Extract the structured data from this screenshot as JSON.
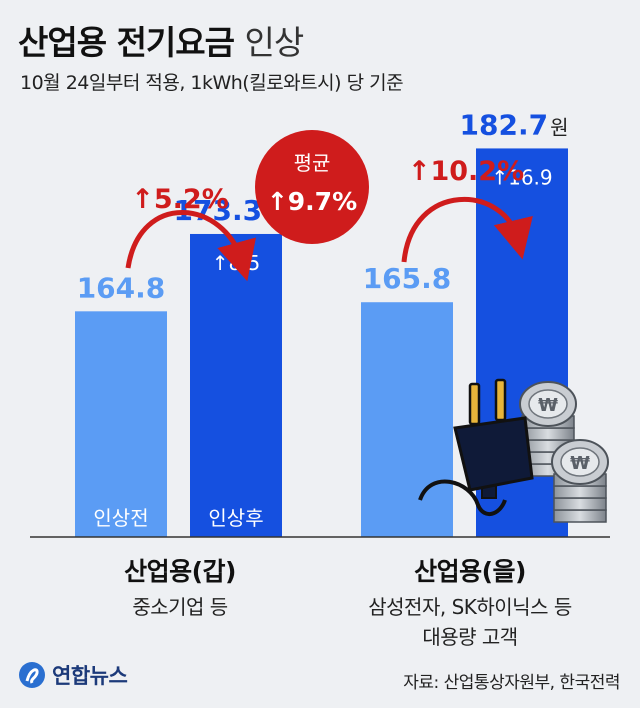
{
  "title_bold": "산업용 전기요금",
  "title_light": "인상",
  "subtitle": "10월 24일부터 적용, 1kWh(킬로와트시) 당 기준",
  "colors": {
    "before": "#5b9cf4",
    "after": "#1550e0",
    "accent": "#cf1c1c",
    "text": "#111111"
  },
  "average": {
    "label": "평균",
    "value": "↑9.7%"
  },
  "chart_data": {
    "type": "bar",
    "categories": [
      "산업용(갑)",
      "산업용(을)"
    ],
    "series": [
      {
        "name": "인상전",
        "values": [
          164.8,
          165.8
        ]
      },
      {
        "name": "인상후",
        "values": [
          173.3,
          182.7
        ]
      }
    ],
    "unit": "원",
    "increase_amounts": [
      "↑8.5",
      "↑16.9"
    ],
    "increase_rates": [
      "↑5.2%",
      "↑10.2%"
    ],
    "value_labels_before": [
      "164.8",
      "165.8"
    ],
    "value_labels_after": [
      "173.3",
      "182.7"
    ]
  },
  "groups": [
    {
      "title": "산업용(갑)",
      "desc": [
        "중소기업 등"
      ]
    },
    {
      "title": "산업용(을)",
      "desc": [
        "삼성전자, SK하이닉스 등",
        "대용량 고객"
      ]
    }
  ],
  "illustration": {
    "plug": "plug-icon",
    "coins": "won-coin-stack-icon",
    "coin_symbol": "₩"
  },
  "footer": {
    "logo_text": "연합뉴스",
    "source": "자료: 산업통상자원부, 한국전력"
  }
}
